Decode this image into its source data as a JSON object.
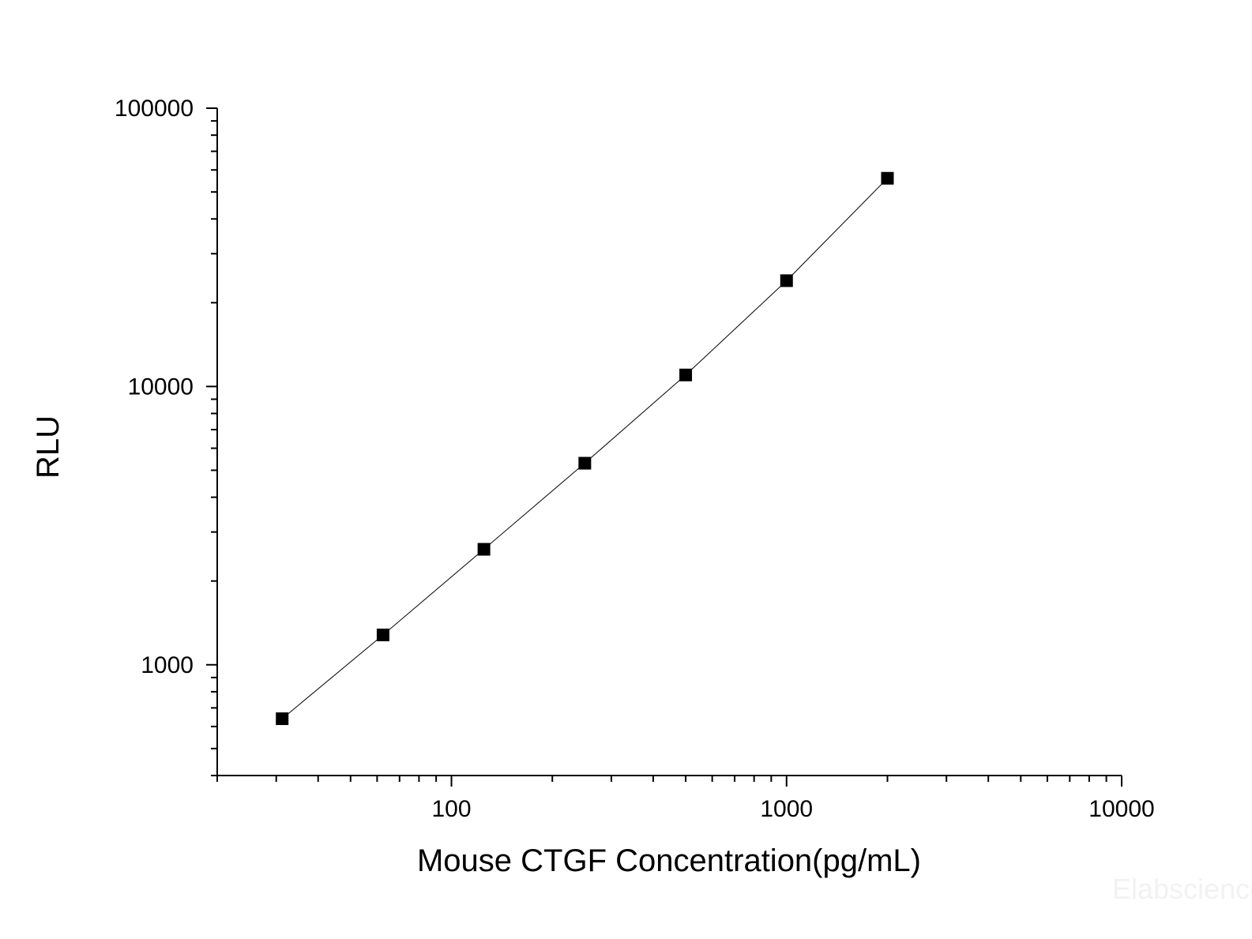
{
  "chart_data": {
    "type": "scatter",
    "xlabel": "Mouse CTGF Concentration(pg/mL)",
    "ylabel": "RLU",
    "x_scale": "log",
    "y_scale": "log",
    "xlim": [
      20,
      10000
    ],
    "ylim": [
      400,
      100000
    ],
    "x_ticks": [
      {
        "value": 100,
        "label": "100"
      },
      {
        "value": 1000,
        "label": "1000"
      },
      {
        "value": 10000,
        "label": "10000"
      }
    ],
    "y_ticks": [
      {
        "value": 1000,
        "label": "1000"
      },
      {
        "value": 10000,
        "label": "10000"
      },
      {
        "value": 100000,
        "label": "100000"
      }
    ],
    "grid": false,
    "legend": "none",
    "line_connects_points": true,
    "marker": "square",
    "colors": {
      "marker": "#000000",
      "line": "#000000",
      "axis": "#000000"
    },
    "series": [
      {
        "x": [
          31.25,
          62.5,
          125,
          250,
          500,
          1000,
          2000
        ],
        "y": [
          640,
          1280,
          2600,
          5300,
          11000,
          24000,
          56000
        ]
      }
    ]
  },
  "watermark": "Elabscience"
}
